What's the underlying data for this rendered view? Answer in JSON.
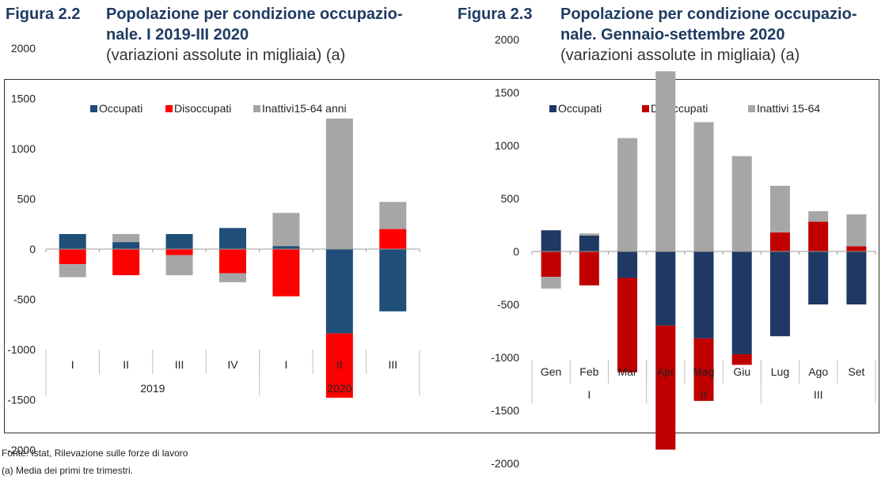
{
  "figures": [
    {
      "label": "Figura 2.2",
      "title": "Popolazione per condizione occupazio-\nnale. I 2019-III 2020",
      "subtitle": "(variazioni assolute in migliaia) (a)"
    },
    {
      "label": "Figura 2.3",
      "title": "Popolazione per condizione occupazio-\nnale. Gennaio-settembre 2020",
      "subtitle": "(variazioni assolute in migliaia) (a)"
    }
  ],
  "footnotes": {
    "source": "Fonte: Istat, Rilevazione sulle forze di lavoro",
    "note": "(a) Media dei primi tre trimestri."
  },
  "colors": {
    "occupati": "#1f4e79",
    "disoccupati": "#ff0000",
    "inattivi": "#a6a6a6",
    "occupati2": "#1f3864",
    "disoccupati2": "#c00000",
    "inattivi2": "#a6a6a6"
  },
  "chart_data": [
    {
      "type": "bar",
      "stacked": true,
      "legend_position": "top",
      "ylim": [
        -2000,
        2000
      ],
      "yticks": [
        2000,
        1500,
        1000,
        500,
        0,
        -500,
        -1000,
        -1500,
        -2000
      ],
      "categories": [
        "I",
        "II",
        "III",
        "IV",
        "I",
        "II",
        "III"
      ],
      "groups": [
        {
          "label": "2019",
          "span": 4
        },
        {
          "label": "2020",
          "span": 3
        }
      ],
      "series": [
        {
          "name": "Occupati",
          "values": [
            150,
            70,
            150,
            210,
            30,
            -840,
            -620
          ]
        },
        {
          "name": "Disoccupati",
          "values": [
            -150,
            -260,
            -60,
            -240,
            -470,
            -640,
            200
          ]
        },
        {
          "name": "Inattivi15-64 anni",
          "values": [
            -130,
            80,
            -200,
            -90,
            330,
            1300,
            270
          ]
        }
      ]
    },
    {
      "type": "bar",
      "stacked": true,
      "legend_position": "top",
      "ylim": [
        -2000,
        2000
      ],
      "yticks": [
        2000,
        1500,
        1000,
        500,
        0,
        -500,
        -1000,
        -1500,
        -2000
      ],
      "categories": [
        "Gen",
        "Feb",
        "Mar",
        "Apr",
        "Mag",
        "Giu",
        "Lug",
        "Ago",
        "Set"
      ],
      "groups": [
        {
          "label": "I",
          "span": 3
        },
        {
          "label": "II",
          "span": 3
        },
        {
          "label": "III",
          "span": 3
        }
      ],
      "series": [
        {
          "name": "Occupati",
          "values": [
            200,
            150,
            -250,
            -700,
            -820,
            -970,
            -800,
            -500,
            -500
          ]
        },
        {
          "name": "Disoccupati",
          "values": [
            -240,
            -320,
            -890,
            -1170,
            -590,
            -100,
            180,
            280,
            50
          ]
        },
        {
          "name": "Inattivi 15-64",
          "values": [
            -110,
            20,
            1070,
            1700,
            1220,
            900,
            440,
            100,
            300
          ]
        }
      ]
    }
  ]
}
